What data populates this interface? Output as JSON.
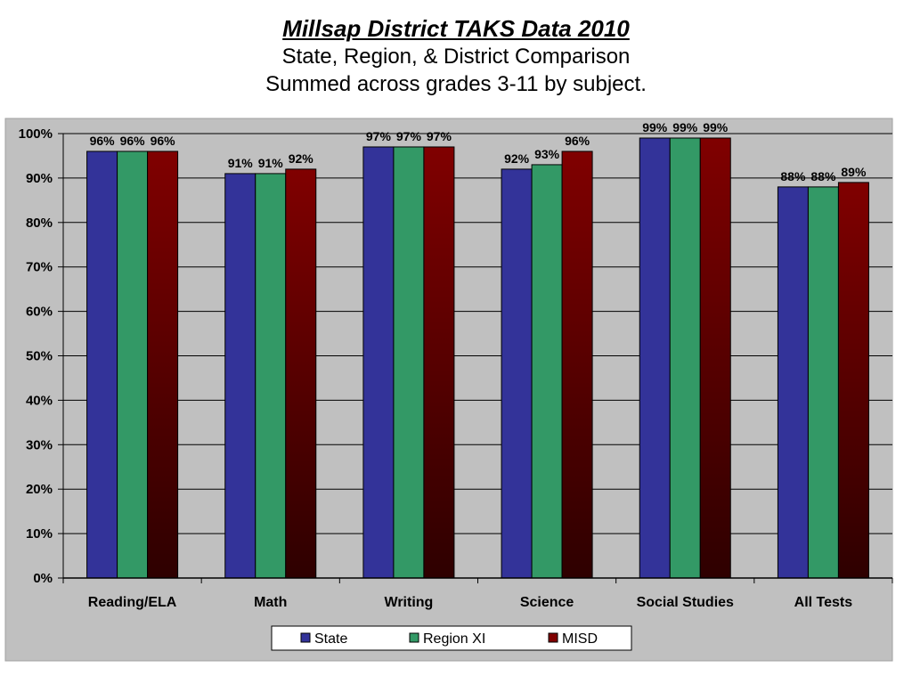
{
  "header": {
    "title": "Millsap District TAKS Data 2010",
    "subtitle_1": "State, Region, & District Comparison",
    "subtitle_2": "Summed across grades 3-11 by subject."
  },
  "colors": {
    "plot_background": "#c0c0c0",
    "frame_background": "#c0c0c0",
    "state": "#333399",
    "region": "#339966",
    "misd_top": "#800000",
    "misd_bottom": "#2e0000"
  },
  "chart_data": {
    "type": "bar",
    "title": "Millsap District TAKS Data 2010",
    "categories": [
      "Reading/ELA",
      "Math",
      "Writing",
      "Science",
      "Social Studies",
      "All Tests"
    ],
    "series": [
      {
        "name": "State",
        "values": [
          96,
          91,
          97,
          92,
          99,
          88
        ]
      },
      {
        "name": "Region XI",
        "values": [
          96,
          91,
          97,
          93,
          99,
          88
        ]
      },
      {
        "name": "MISD",
        "values": [
          96,
          92,
          97,
          96,
          99,
          89
        ]
      }
    ],
    "data_labels": [
      [
        "96%",
        "91%",
        "97%",
        "92%",
        "99%",
        "88%"
      ],
      [
        "96%",
        "91%",
        "97%",
        "93%",
        "99%",
        "88%"
      ],
      [
        "96%",
        "92%",
        "97%",
        "96%",
        "99%",
        "89%"
      ]
    ],
    "y_ticks": [
      "0%",
      "10%",
      "20%",
      "30%",
      "40%",
      "50%",
      "60%",
      "70%",
      "80%",
      "90%",
      "100%"
    ],
    "ylim": [
      0,
      100
    ],
    "grid": true,
    "legend_position": "bottom"
  }
}
